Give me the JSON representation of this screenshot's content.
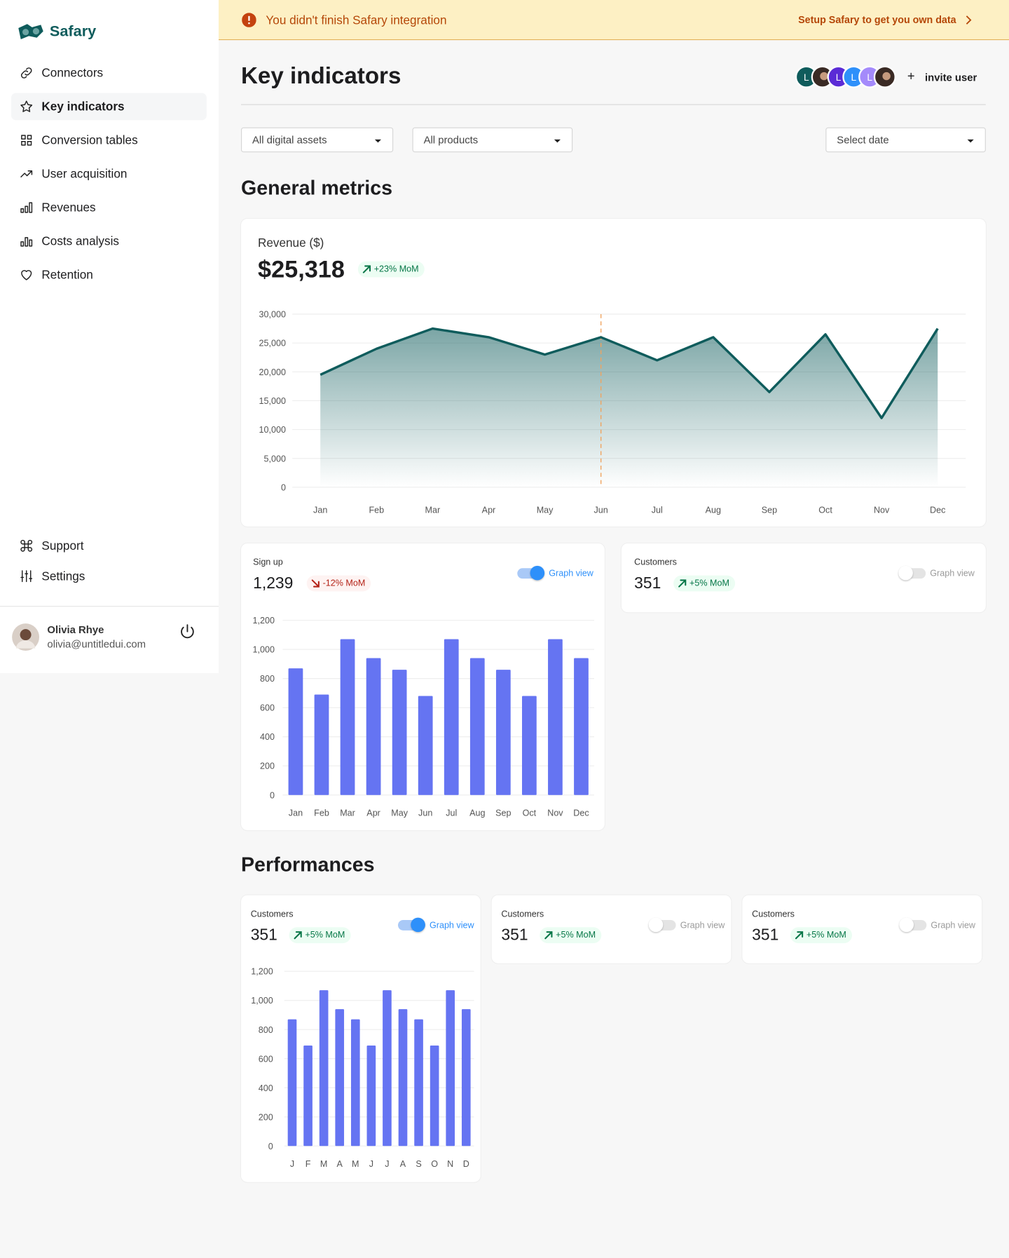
{
  "banner": {
    "message": "You didn't finish Safary integration",
    "action": "Setup Safary to get you own data"
  },
  "sidebar": {
    "brand": "Safary",
    "nav": [
      "Connectors",
      "Key indicators",
      "Conversion tables",
      "User acquisition",
      "Revenues",
      "Costs analysis",
      "Retention"
    ],
    "footer_nav": [
      "Support",
      "Settings"
    ],
    "user": {
      "name": "Olivia Rhye",
      "email": "olivia@untitledui.com"
    }
  },
  "header": {
    "title": "Key indicators",
    "avatars": [
      "L",
      "L",
      "L",
      "L"
    ],
    "invite": "invite user"
  },
  "filters": [
    "All digital assets",
    "All products",
    "Select date"
  ],
  "sections": [
    "General metrics",
    "Performances"
  ],
  "revenue": {
    "label": "Revenue ($)",
    "value": "$25,318",
    "change": "+23% MoM",
    "chart": {
      "type": "area",
      "categories": [
        "Jan",
        "Feb",
        "Mar",
        "Apr",
        "May",
        "Jun",
        "Jul",
        "Aug",
        "Sep",
        "Oct",
        "Nov",
        "Dec"
      ],
      "values": [
        19500,
        24000,
        27500,
        26000,
        23000,
        26000,
        22000,
        26000,
        16500,
        26500,
        12000,
        27500
      ],
      "color": "#0f5c5c",
      "highlight": "Jun",
      "ylim": [
        0,
        30000
      ],
      "yticks": [
        0,
        {
          "value": 5000,
          "label": "5,000"
        },
        {
          "value": 10000,
          "label": "10,000"
        },
        {
          "value": 15000,
          "label": "15,000"
        },
        {
          "value": 20000,
          "label": "20,000"
        },
        {
          "value": 25000,
          "label": "25,000"
        },
        {
          "value": 30000,
          "label": "30,000"
        }
      ],
      "grid": true
    }
  },
  "signup": {
    "label": "Sign up",
    "value": "1,239",
    "change": "-12% MoM",
    "toggle": "Graph view",
    "graph_view": true,
    "chart": {
      "type": "bar",
      "categories": [
        "Jan",
        "Feb",
        "Mar",
        "Apr",
        "May",
        "Jun",
        "Jul",
        "Aug",
        "Sep",
        "Oct",
        "Nov",
        "Dec"
      ],
      "values": [
        870,
        690,
        1070,
        940,
        860,
        680,
        1070,
        940,
        860,
        680,
        1070,
        940
      ],
      "color": "#6574f2",
      "ylim": [
        0,
        1200
      ],
      "yticks": [
        0,
        200,
        400,
        600,
        800,
        {
          "value": 1000,
          "label": "1,000"
        },
        {
          "value": 1200,
          "label": "1,200"
        }
      ],
      "grid": true
    }
  },
  "customers": {
    "label": "Customers",
    "value": "351",
    "change": "+5% MoM",
    "toggle": "Graph view",
    "graph_view": false
  },
  "performances": [
    {
      "label": "Customers",
      "value": "351",
      "change": "+5% MoM",
      "toggle": "Graph view",
      "graph_view": true,
      "chart": {
        "type": "bar",
        "categories": [
          "J",
          "F",
          "M",
          "A",
          "M",
          "J",
          "J",
          "A",
          "S",
          "O",
          "N",
          "D"
        ],
        "values": [
          870,
          690,
          1070,
          940,
          870,
          690,
          1070,
          940,
          870,
          690,
          1070,
          940
        ],
        "color": "#6574f2",
        "ylim": [
          0,
          1200
        ],
        "yticks": [
          0,
          200,
          400,
          600,
          800,
          {
            "value": 1000,
            "label": "1,000"
          },
          {
            "value": 1200,
            "label": "1,200"
          }
        ],
        "grid": true
      }
    },
    {
      "label": "Customers",
      "value": "351",
      "change": "+5% MoM",
      "toggle": "Graph view",
      "graph_view": false
    },
    {
      "label": "Customers",
      "value": "351",
      "change": "+5% MoM",
      "toggle": "Graph view",
      "graph_view": false
    }
  ]
}
